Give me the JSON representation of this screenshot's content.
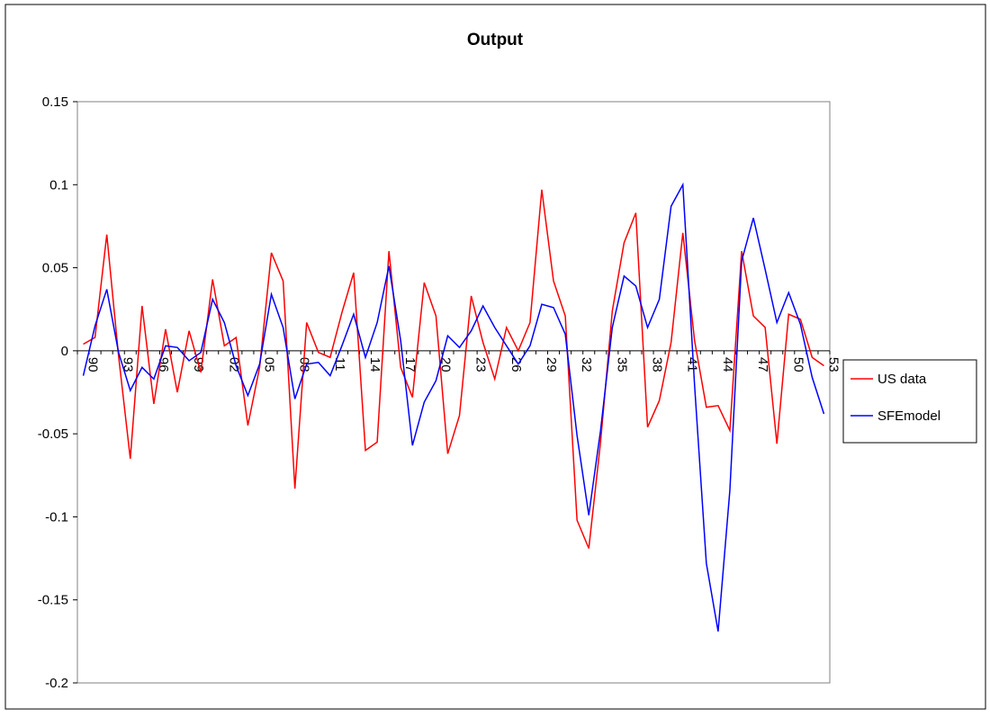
{
  "chart_data": {
    "type": "line",
    "title": "Output",
    "xlabel": "",
    "ylabel": "",
    "ylim": [
      -0.2,
      0.15
    ],
    "yticks": [
      "0.15",
      "0.1",
      "0.05",
      "0",
      "-0.05",
      "-0.1",
      "-0.15",
      "-0.2"
    ],
    "ytick_values": [
      0.15,
      0.1,
      0.05,
      0,
      -0.05,
      -0.1,
      -0.15,
      -0.2
    ],
    "tick_labels": [
      "90",
      "93",
      "96",
      "99",
      "02",
      "05",
      "08",
      "11",
      "14",
      "17",
      "20",
      "23",
      "26",
      "29",
      "32",
      "35",
      "38",
      "41",
      "44",
      "47",
      "50",
      "53"
    ],
    "x": [
      "1890",
      "1891",
      "1892",
      "1893",
      "1894",
      "1895",
      "1896",
      "1897",
      "1898",
      "1899",
      "1900",
      "1901",
      "1902",
      "1903",
      "1904",
      "1905",
      "1906",
      "1907",
      "1908",
      "1909",
      "1910",
      "1911",
      "1912",
      "1913",
      "1914",
      "1915",
      "1916",
      "1917",
      "1918",
      "1919",
      "1920",
      "1921",
      "1922",
      "1923",
      "1924",
      "1925",
      "1926",
      "1927",
      "1928",
      "1929",
      "1930",
      "1931",
      "1932",
      "1933",
      "1934",
      "1935",
      "1936",
      "1937",
      "1938",
      "1939",
      "1940",
      "1941",
      "1942",
      "1943",
      "1944",
      "1945",
      "1946",
      "1947",
      "1948",
      "1949",
      "1950",
      "1951",
      "1952",
      "1953"
    ],
    "legend_position": "right",
    "grid": false,
    "series": [
      {
        "name": "US data",
        "color": "#ff0000",
        "values": [
          0.004,
          0.008,
          0.07,
          -0.003,
          -0.065,
          0.027,
          -0.032,
          0.013,
          -0.025,
          0.012,
          -0.013,
          0.043,
          0.003,
          0.008,
          -0.045,
          -0.01,
          0.059,
          0.042,
          -0.083,
          0.017,
          -0.001,
          -0.004,
          0.023,
          0.047,
          -0.06,
          -0.055,
          0.06,
          -0.01,
          -0.028,
          0.041,
          0.021,
          -0.062,
          -0.039,
          0.033,
          0.005,
          -0.017,
          0.014,
          0.0,
          0.017,
          0.097,
          0.042,
          0.021,
          -0.102,
          -0.119,
          -0.055,
          0.024,
          0.065,
          0.083,
          -0.046,
          -0.03,
          0.005,
          0.071,
          0.006,
          -0.034,
          -0.033,
          -0.048,
          0.06,
          0.021,
          0.014,
          -0.056,
          0.022,
          0.019,
          -0.004,
          -0.009
        ]
      },
      {
        "name": "SFEmodel",
        "color": "#0000ff",
        "values": [
          -0.015,
          0.015,
          0.037,
          -0.001,
          -0.024,
          -0.01,
          -0.017,
          0.003,
          0.002,
          -0.006,
          -0.001,
          0.031,
          0.017,
          -0.009,
          -0.027,
          -0.008,
          0.034,
          0.014,
          -0.029,
          -0.008,
          -0.007,
          -0.015,
          0.003,
          0.022,
          -0.004,
          0.017,
          0.051,
          0.006,
          -0.057,
          -0.031,
          -0.018,
          0.009,
          0.002,
          0.012,
          0.027,
          0.014,
          0.003,
          -0.008,
          0.003,
          0.028,
          0.026,
          0.01,
          -0.051,
          -0.099,
          -0.048,
          0.014,
          0.045,
          0.039,
          0.014,
          0.031,
          0.087,
          0.1,
          -0.021,
          -0.128,
          -0.169,
          -0.084,
          0.054,
          0.08,
          0.049,
          0.017,
          0.035,
          0.016,
          -0.016,
          -0.038
        ]
      }
    ]
  }
}
